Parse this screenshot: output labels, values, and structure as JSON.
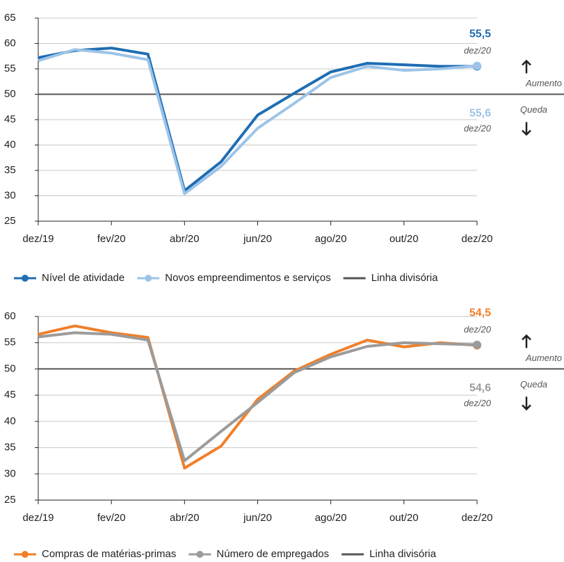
{
  "chart_data": [
    {
      "type": "line",
      "categories": [
        "dez/19",
        null,
        "fev/20",
        null,
        "abr/20",
        null,
        "jun/20",
        null,
        "ago/20",
        null,
        "out/20",
        null,
        "dez/20"
      ],
      "series": [
        {
          "name": "Nível de atividade",
          "color": "#1f6db3",
          "values": [
            57.2,
            58.6,
            59.1,
            57.9,
            31.0,
            36.7,
            45.9,
            50.2,
            54.4,
            56.1,
            55.8,
            55.5,
            55.5
          ],
          "end_label": "55,5",
          "end_label_date": "dez/20"
        },
        {
          "name": "Novos empreendimentos e serviços",
          "color": "#9dc4e8",
          "values": [
            56.6,
            58.8,
            58.1,
            56.8,
            30.4,
            35.8,
            43.3,
            48.2,
            53.3,
            55.5,
            54.7,
            55.0,
            55.6
          ],
          "end_label": "55,6",
          "end_label_date": "dez/20"
        }
      ],
      "reference_line": {
        "name": "Linha divisória",
        "value": 50,
        "color": "#555555"
      },
      "annotations": [
        "Aumento",
        "Queda"
      ],
      "ylim": [
        25,
        65
      ],
      "yticks": [
        25,
        30,
        35,
        40,
        45,
        50,
        55,
        60,
        65
      ],
      "grid": true
    },
    {
      "type": "line",
      "categories": [
        "dez/19",
        null,
        "fev/20",
        null,
        "abr/20",
        null,
        "jun/20",
        null,
        "ago/20",
        null,
        "out/20",
        null,
        "dez/20"
      ],
      "series": [
        {
          "name": "Compras de matérias-primas",
          "color": "#f07f2a",
          "values": [
            56.6,
            58.2,
            56.9,
            56.0,
            31.1,
            35.3,
            44.2,
            49.6,
            52.8,
            55.5,
            54.2,
            55.0,
            54.5
          ],
          "end_label": "54,5",
          "end_label_date": "dez/20"
        },
        {
          "name": "Número de empregados",
          "color": "#9b9b9b",
          "values": [
            56.1,
            56.9,
            56.6,
            55.5,
            32.5,
            38.1,
            43.6,
            49.3,
            52.3,
            54.3,
            55.0,
            54.8,
            54.6
          ],
          "end_label": "54,6",
          "end_label_date": "dez/20"
        }
      ],
      "reference_line": {
        "name": "Linha divisória",
        "value": 50,
        "color": "#555555"
      },
      "annotations": [
        "Aumento",
        "Queda"
      ],
      "ylim": [
        25,
        60
      ],
      "yticks": [
        25,
        30,
        35,
        40,
        45,
        50,
        55,
        60
      ],
      "grid": true
    }
  ]
}
